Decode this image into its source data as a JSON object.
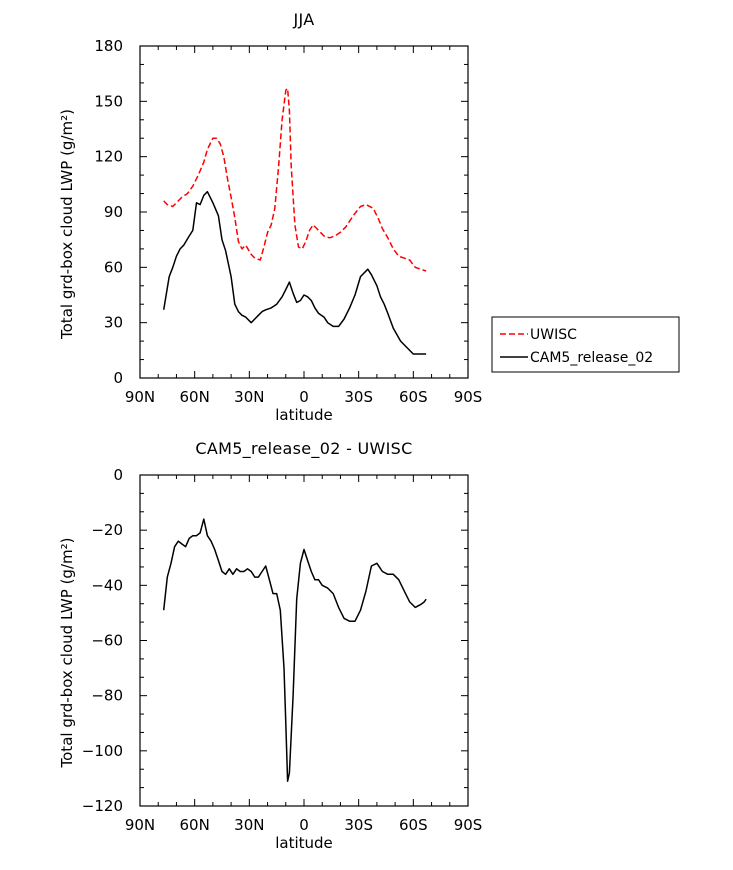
{
  "legend": {
    "items": [
      {
        "label": "UWISC",
        "color": "#ff0000",
        "dash": true
      },
      {
        "label": "CAM5_release_02",
        "color": "#000000",
        "dash": false
      }
    ]
  },
  "chart_data": [
    {
      "type": "line",
      "title": "JJA",
      "xlabel": "latitude",
      "ylabel": "Total grd-box cloud LWP (g/m²)",
      "xlim": [
        90,
        -90
      ],
      "ylim": [
        0,
        180
      ],
      "xticks": [
        90,
        60,
        30,
        0,
        -30,
        -60,
        -90
      ],
      "xtick_labels": [
        "90N",
        "60N",
        "30N",
        "0",
        "30S",
        "60S",
        "90S"
      ],
      "yticks": [
        0,
        30,
        60,
        90,
        120,
        150,
        180
      ],
      "ytick_labels": [
        "0",
        "30",
        "60",
        "90",
        "120",
        "150",
        "180"
      ],
      "grid": false,
      "legend_position": "right",
      "series": [
        {
          "name": "UWISC",
          "color": "#ff0000",
          "dash": true,
          "x": [
            77,
            75,
            72,
            70,
            67,
            64,
            61,
            58,
            55,
            53,
            50,
            48,
            46,
            44,
            42,
            40,
            38,
            36,
            34,
            32,
            29,
            27,
            24,
            22,
            20,
            18,
            16,
            14,
            12,
            10,
            9,
            8,
            7,
            5,
            3,
            1,
            -1,
            -3,
            -5,
            -7,
            -9,
            -11,
            -14,
            -17,
            -20,
            -23,
            -27,
            -31,
            -34,
            -38,
            -41,
            -43,
            -46,
            -49,
            -52,
            -55,
            -58,
            -61,
            -64,
            -67
          ],
          "y": [
            96,
            94,
            93,
            95,
            98,
            100,
            104,
            110,
            117,
            124,
            130,
            130,
            127,
            120,
            108,
            98,
            87,
            74,
            70,
            72,
            67,
            65,
            64,
            71,
            79,
            83,
            92,
            114,
            140,
            156,
            157,
            145,
            115,
            83,
            71,
            70,
            74,
            80,
            83,
            81,
            79,
            77,
            76,
            77,
            79,
            82,
            88,
            93,
            94,
            92,
            86,
            81,
            76,
            70,
            66,
            65,
            64,
            60,
            59,
            58
          ]
        },
        {
          "name": "CAM5_release_02",
          "color": "#000000",
          "dash": false,
          "x": [
            77,
            74,
            72,
            70,
            68,
            66,
            63,
            61,
            59,
            57,
            55,
            53,
            50,
            47,
            45,
            43,
            40,
            38,
            36,
            34,
            32,
            29,
            27,
            25,
            23,
            21,
            18,
            15,
            12,
            10,
            8,
            6,
            4,
            2,
            0,
            -2,
            -4,
            -6,
            -8,
            -11,
            -13,
            -16,
            -19,
            -22,
            -25,
            -28,
            -31,
            -35,
            -37,
            -40,
            -42,
            -44,
            -46,
            -49,
            -53,
            -56,
            -60,
            -62,
            -64,
            -67
          ],
          "y": [
            37,
            55,
            60,
            66,
            70,
            72,
            77,
            80,
            95,
            94,
            99,
            101,
            95,
            88,
            75,
            69,
            55,
            40,
            36,
            34,
            33,
            30,
            32,
            34,
            36,
            37,
            38,
            40,
            44,
            48,
            52,
            46,
            41,
            42,
            45,
            44,
            42,
            38,
            35,
            33,
            30,
            28,
            28,
            32,
            38,
            45,
            55,
            59,
            56,
            50,
            44,
            40,
            35,
            27,
            20,
            17,
            13,
            13,
            13,
            13
          ]
        }
      ]
    },
    {
      "type": "line",
      "title": "CAM5_release_02 - UWISC",
      "xlabel": "latitude",
      "ylabel": "Total grd-box cloud LWP (g/m²)",
      "xlim": [
        90,
        -90
      ],
      "ylim": [
        -120,
        0
      ],
      "xticks": [
        90,
        60,
        30,
        0,
        -30,
        -60,
        -90
      ],
      "xtick_labels": [
        "90N",
        "60N",
        "30N",
        "0",
        "30S",
        "60S",
        "90S"
      ],
      "yticks": [
        -120,
        -100,
        -80,
        -60,
        -40,
        -20,
        0
      ],
      "ytick_labels": [
        "−120",
        "−100",
        "−80",
        "−60",
        "−40",
        "−20",
        "0"
      ],
      "grid": false,
      "series": [
        {
          "color": "#000000",
          "dash": false,
          "x": [
            77,
            75,
            73,
            71,
            69,
            67,
            65,
            63,
            61,
            59,
            57,
            55,
            53,
            51,
            49,
            47,
            45,
            43,
            41,
            39,
            37,
            35,
            33,
            31,
            29,
            27,
            25,
            23,
            21,
            19,
            17,
            15,
            13,
            11,
            10,
            9,
            8,
            6,
            4,
            2,
            0,
            -2,
            -4,
            -6,
            -8,
            -10,
            -13,
            -16,
            -19,
            -22,
            -25,
            -28,
            -31,
            -34,
            -37,
            -40,
            -43,
            -46,
            -49,
            -52,
            -55,
            -58,
            -61,
            -64,
            -66,
            -67
          ],
          "y": [
            -49,
            -37,
            -32,
            -26,
            -24,
            -25,
            -26,
            -23,
            -22,
            -22,
            -21,
            -16,
            -22,
            -24,
            -27,
            -31,
            -35,
            -36,
            -34,
            -36,
            -34,
            -35,
            -35,
            -34,
            -35,
            -37,
            -37,
            -35,
            -33,
            -38,
            -43,
            -43,
            -49,
            -70,
            -90,
            -111,
            -108,
            -80,
            -45,
            -32,
            -27,
            -31,
            -35,
            -38,
            -38,
            -40,
            -41,
            -43,
            -48,
            -52,
            -53,
            -53,
            -49,
            -42,
            -33,
            -32,
            -35,
            -36,
            -36,
            -38,
            -42,
            -46,
            -48,
            -47,
            -46,
            -45
          ]
        }
      ]
    }
  ]
}
